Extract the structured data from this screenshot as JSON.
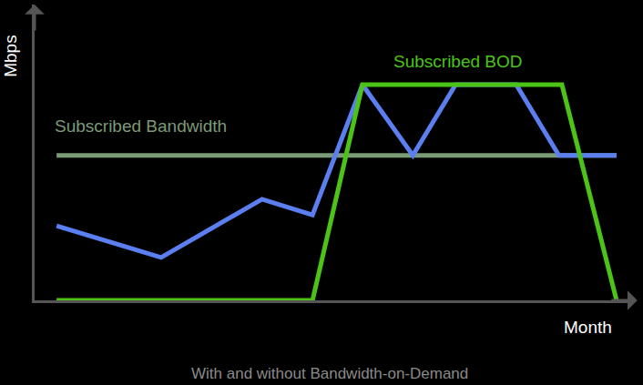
{
  "chart_data": {
    "type": "line",
    "title": "With and without Bandwidth-on-Demand",
    "x_label": "Month",
    "y_label": "Mbps",
    "xlim": [
      0,
      100
    ],
    "ylim": [
      0,
      100
    ],
    "tick_labels": false,
    "grid": false,
    "series": [
      {
        "name": "Subscribed Bandwidth",
        "color": "#7a9a78",
        "x": [
          3.7,
          98.0
        ],
        "values": [
          49,
          49
        ]
      },
      {
        "color": "#5b7ff0",
        "x": [
          3.7,
          21.3,
          38.3,
          46.8,
          55.2,
          63.7,
          70.9,
          81.1,
          88.3,
          98.0
        ],
        "values": [
          25.2,
          14.5,
          34.2,
          28.9,
          72.9,
          49,
          72.9,
          72.9,
          49,
          49
        ]
      },
      {
        "name": "Subscribed BOD",
        "color": "#4cc417",
        "x": [
          3.7,
          46.8,
          55.2,
          88.8,
          98.0
        ],
        "values": [
          0,
          0,
          72.9,
          72.9,
          0
        ]
      }
    ]
  }
}
